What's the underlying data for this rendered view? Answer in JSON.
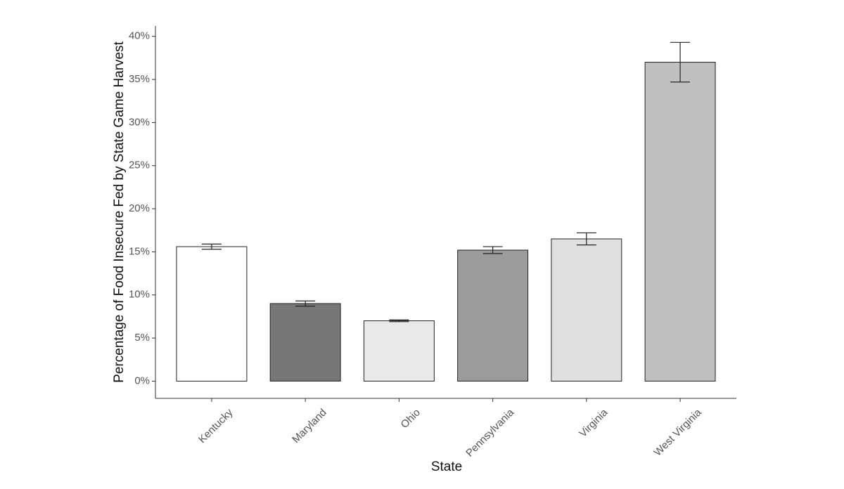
{
  "chart_data": {
    "type": "bar",
    "x_label": "State",
    "y_label": "Percentage of Food Insecure Fed by State Game Harvest",
    "categories": [
      "Kentucky",
      "Maryland",
      "Ohio",
      "Pennsylvania",
      "Virginia",
      "West Virginia"
    ],
    "values": [
      15.6,
      9.0,
      7.0,
      15.2,
      16.5,
      37.0
    ],
    "errors": [
      0.3,
      0.3,
      0.1,
      0.4,
      0.7,
      2.3
    ],
    "colors": [
      "#ffffff",
      "#777777",
      "#e9e9e9",
      "#9b9b9b",
      "#e0e0e0",
      "#c0c0c0"
    ],
    "ylim": [
      -2,
      41.2
    ],
    "yticks": [
      {
        "value": 0,
        "label": "0%"
      },
      {
        "value": 5,
        "label": "5%"
      },
      {
        "value": 10,
        "label": "10%"
      },
      {
        "value": 15,
        "label": "15%"
      },
      {
        "value": 20,
        "label": "20%"
      },
      {
        "value": 25,
        "label": "25%"
      },
      {
        "value": 30,
        "label": "30%"
      },
      {
        "value": 35,
        "label": "35%"
      },
      {
        "value": 40,
        "label": "40%"
      }
    ],
    "grid": false
  }
}
